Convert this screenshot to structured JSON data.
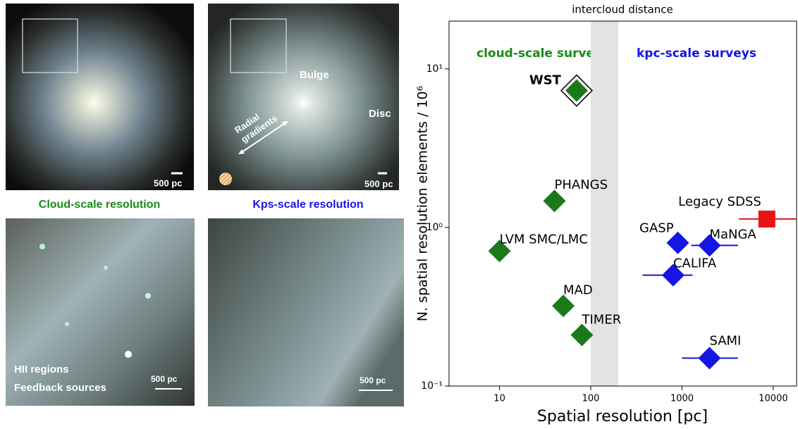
{
  "images": {
    "scale_bars": [
      "500 pc",
      "500 pc",
      "500 pc",
      "500 pc"
    ],
    "bulge": "Bulge",
    "disc": "Disc",
    "radial": [
      "Radial",
      "gradients"
    ],
    "cloud_caption": "Cloud-scale resolution",
    "kpc_caption": "Kps-scale resolution",
    "notes": [
      "HII regions",
      "Feedback sources"
    ]
  },
  "chart_data": {
    "type": "scatter",
    "top_label": "intercloud distance",
    "band": [
      100,
      200
    ],
    "annotations": [
      {
        "text": "cloud-scale surveys",
        "color": "#1a8a1a"
      },
      {
        "text": "kpc-scale surveys",
        "color": "#1515e6"
      }
    ],
    "x_label": "Spatial resolution [pc]",
    "y_label": "N. spatial resolution elements / 10⁶",
    "x_log": true,
    "y_log": true,
    "labels": [
      "WST",
      "PHANGS",
      "LVM SMC/LMC",
      "MAD",
      "TIMER",
      "GASP",
      "MaNGA",
      "CALIFA",
      "SAMI",
      "Legacy SDSS"
    ],
    "x": [
      70,
      40,
      10,
      50,
      80,
      900,
      2000,
      800,
      2000,
      8500
    ],
    "y": [
      7.3,
      1.47,
      0.71,
      0.32,
      0.21,
      0.8,
      0.77,
      0.5,
      0.15,
      1.13
    ],
    "x_low": [
      null,
      null,
      null,
      null,
      null,
      null,
      1260,
      370,
      1000,
      4200
    ],
    "x_high": [
      null,
      null,
      null,
      null,
      null,
      null,
      4100,
      1300,
      4100,
      18000
    ],
    "colors": [
      "#1a7a1a",
      "#1a7a1a",
      "#1a7a1a",
      "#1a7a1a",
      "#1a7a1a",
      "#1515e6",
      "#1515e6",
      "#1515e6",
      "#1515e6",
      "#e61515"
    ],
    "markers": [
      "diamond",
      "diamond",
      "diamond",
      "diamond",
      "diamond",
      "diamond",
      "diamond",
      "diamond",
      "diamond",
      "square"
    ],
    "highlight": [
      true,
      false,
      false,
      false,
      false,
      false,
      false,
      false,
      false,
      false
    ],
    "xlim": [
      2.8,
      18000
    ],
    "ylim": [
      0.1,
      20
    ],
    "xticks": [
      10,
      100,
      1000,
      10000
    ],
    "yticks": [
      {
        "value": 0.1,
        "label": "10⁻¹"
      },
      {
        "value": 1,
        "label": "10⁰"
      },
      {
        "value": 10,
        "label": "10¹"
      }
    ]
  }
}
